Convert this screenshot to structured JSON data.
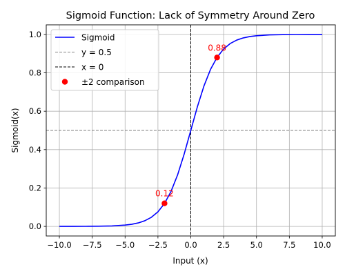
{
  "chart_data": {
    "type": "line",
    "title": "Sigmoid Function: Lack of Symmetry Around Zero",
    "xlabel": "Input (x)",
    "ylabel": "Sigmoid(x)",
    "xlim": [
      -11,
      11
    ],
    "ylim": [
      -0.05,
      1.05
    ],
    "grid": true,
    "legend_position": "top-left",
    "x_ticks": [
      -10,
      -7.5,
      -5,
      -2.5,
      0,
      2.5,
      5,
      7.5,
      10
    ],
    "x_tick_labels": [
      "−10.0",
      "−7.5",
      "−5.0",
      "−2.5",
      "0.0",
      "2.5",
      "5.0",
      "7.5",
      "10.0"
    ],
    "y_ticks": [
      0,
      0.2,
      0.4,
      0.6,
      0.8,
      1.0
    ],
    "y_tick_labels": [
      "0.0",
      "0.2",
      "0.4",
      "0.6",
      "0.8",
      "1.0"
    ],
    "series": [
      {
        "name": "Sigmoid",
        "kind": "line",
        "color": "#0000ff",
        "x": [
          -10,
          -9,
          -8,
          -7,
          -6,
          -5,
          -4.5,
          -4,
          -3.5,
          -3,
          -2.5,
          -2,
          -1.5,
          -1,
          -0.5,
          0,
          0.5,
          1,
          1.5,
          2,
          2.5,
          3,
          3.5,
          4,
          4.5,
          5,
          6,
          7,
          8,
          9,
          10
        ],
        "y": [
          4.54e-05,
          0.000123,
          0.000335,
          0.000911,
          0.00247,
          0.00669,
          0.011,
          0.018,
          0.0293,
          0.0474,
          0.0759,
          0.1192,
          0.1824,
          0.2689,
          0.3775,
          0.5,
          0.6225,
          0.7311,
          0.8176,
          0.8808,
          0.9241,
          0.9526,
          0.9707,
          0.982,
          0.989,
          0.9933,
          0.9975,
          0.9991,
          0.99966,
          0.99988,
          0.99995
        ]
      }
    ],
    "reference_lines": [
      {
        "name": "y = 0.5",
        "orientation": "horizontal",
        "value": 0.5,
        "color": "#808080",
        "style": "dashed"
      },
      {
        "name": "x = 0",
        "orientation": "vertical",
        "value": 0,
        "color": "#000000",
        "style": "dashed"
      }
    ],
    "points": {
      "name": "±2 comparison",
      "color": "#ff0000",
      "x": [
        -2,
        2
      ],
      "y": [
        0.12,
        0.88
      ],
      "labels": [
        "0.12",
        "0.88"
      ]
    }
  }
}
